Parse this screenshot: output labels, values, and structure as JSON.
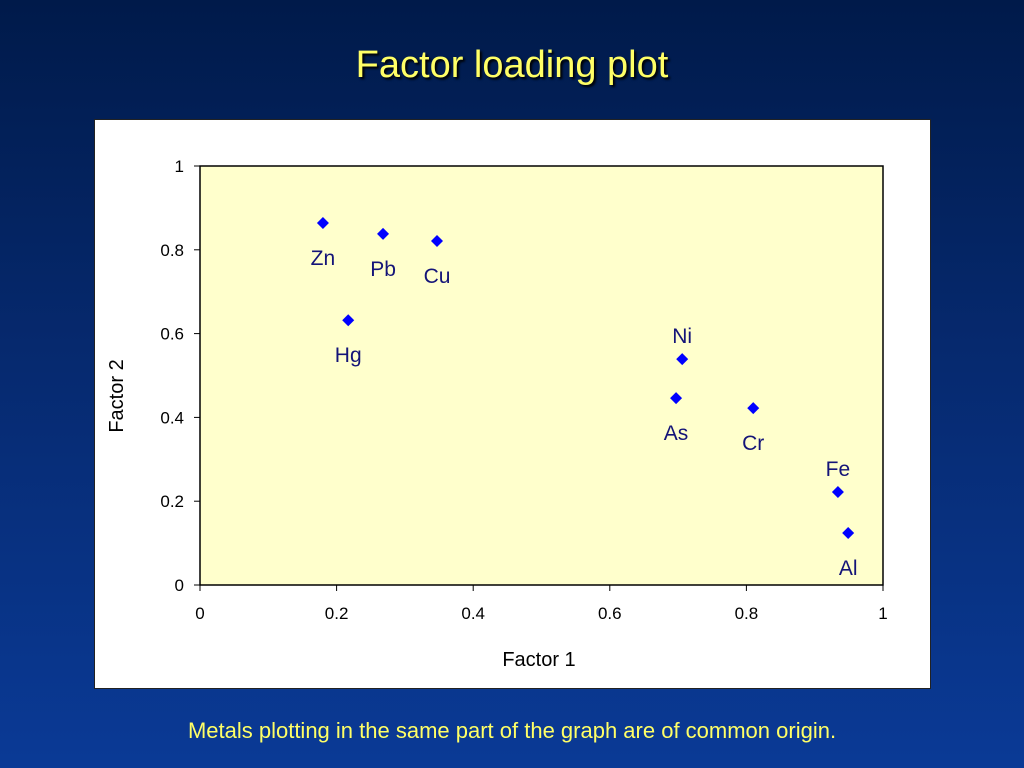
{
  "title": "Factor loading plot",
  "caption": "Metals plotting in the same part of the graph are of common origin.",
  "chart_data": {
    "type": "scatter",
    "xlabel": "Factor 1",
    "ylabel": "Factor 2",
    "xlim": [
      0,
      1
    ],
    "ylim": [
      0,
      1
    ],
    "xticks": [
      "0",
      "0.2",
      "0.4",
      "0.6",
      "0.8",
      "1"
    ],
    "yticks": [
      "0",
      "0.2",
      "0.4",
      "0.6",
      "0.8",
      "1"
    ],
    "grid": false,
    "legend": "none",
    "colors": {
      "marker": "#0000ff",
      "label": "#141478",
      "plot_background": "#ffffcc"
    },
    "points": [
      {
        "label": "Zn",
        "x": 0.18,
        "y": 0.864,
        "label_pos": "below"
      },
      {
        "label": "Pb",
        "x": 0.268,
        "y": 0.838,
        "label_pos": "below"
      },
      {
        "label": "Cu",
        "x": 0.347,
        "y": 0.821,
        "label_pos": "below"
      },
      {
        "label": "Hg",
        "x": 0.217,
        "y": 0.632,
        "label_pos": "below"
      },
      {
        "label": "Ni",
        "x": 0.706,
        "y": 0.539,
        "label_pos": "above"
      },
      {
        "label": "As",
        "x": 0.697,
        "y": 0.446,
        "label_pos": "below"
      },
      {
        "label": "Cr",
        "x": 0.81,
        "y": 0.422,
        "label_pos": "below"
      },
      {
        "label": "Fe",
        "x": 0.934,
        "y": 0.222,
        "label_pos": "above"
      },
      {
        "label": "Al",
        "x": 0.949,
        "y": 0.124,
        "label_pos": "below"
      }
    ]
  }
}
